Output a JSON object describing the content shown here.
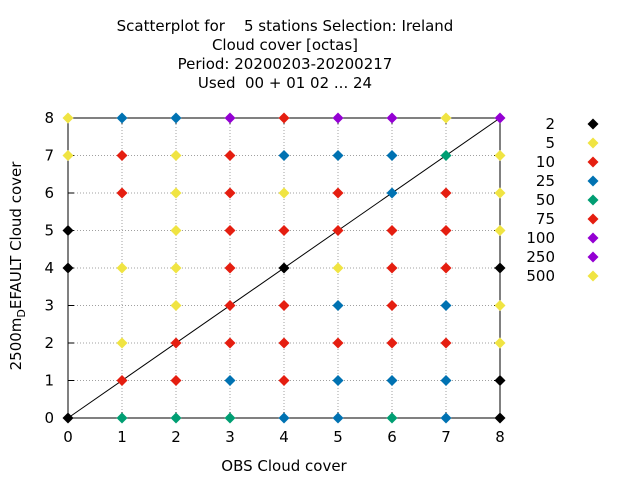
{
  "chart_data": {
    "type": "scatter",
    "title_lines": [
      "Scatterplot for    5 stations Selection: Ireland",
      "Cloud cover [octas]",
      "Period: 20200203-20200217",
      "Used  00 + 01 02 ... 24"
    ],
    "xlabel": "OBS Cloud cover",
    "ylabel": {
      "prefix": "2500m",
      "sub": "D",
      "suffix": "EFAULT Cloud cover"
    },
    "xlim": [
      0,
      8
    ],
    "ylim": [
      0,
      8
    ],
    "xticks": [
      "0",
      "1",
      "2",
      "3",
      "4",
      "5",
      "6",
      "7",
      "8"
    ],
    "yticks": [
      "0",
      "1",
      "2",
      "3",
      "4",
      "5",
      "6",
      "7",
      "8"
    ],
    "grid": true,
    "diagonal": true,
    "legend_position": "right",
    "legend": [
      {
        "label": "2",
        "color": "#000000"
      },
      {
        "label": "5",
        "color": "#f0e442"
      },
      {
        "label": "10",
        "color": "#e51e10"
      },
      {
        "label": "25",
        "color": "#0072b2"
      },
      {
        "label": "50",
        "color": "#009e73"
      },
      {
        "label": "75",
        "color": "#e51e10"
      },
      {
        "label": "100",
        "color": "#9400d3"
      },
      {
        "label": "250",
        "color": "#9400d3"
      },
      {
        "label": "500",
        "color": "#f0e442"
      }
    ],
    "points": [
      {
        "x": 0,
        "y": 0,
        "color": "#000000"
      },
      {
        "x": 1,
        "y": 0,
        "color": "#009e73"
      },
      {
        "x": 2,
        "y": 0,
        "color": "#009e73"
      },
      {
        "x": 3,
        "y": 0,
        "color": "#009e73"
      },
      {
        "x": 4,
        "y": 0,
        "color": "#0072b2"
      },
      {
        "x": 5,
        "y": 0,
        "color": "#0072b2"
      },
      {
        "x": 6,
        "y": 0,
        "color": "#009e73"
      },
      {
        "x": 7,
        "y": 0,
        "color": "#0072b2"
      },
      {
        "x": 8,
        "y": 0,
        "color": "#000000"
      },
      {
        "x": 1,
        "y": 1,
        "color": "#e51e10"
      },
      {
        "x": 2,
        "y": 1,
        "color": "#e51e10"
      },
      {
        "x": 3,
        "y": 1,
        "color": "#0072b2"
      },
      {
        "x": 4,
        "y": 1,
        "color": "#e51e10"
      },
      {
        "x": 5,
        "y": 1,
        "color": "#0072b2"
      },
      {
        "x": 6,
        "y": 1,
        "color": "#0072b2"
      },
      {
        "x": 7,
        "y": 1,
        "color": "#0072b2"
      },
      {
        "x": 8,
        "y": 1,
        "color": "#000000"
      },
      {
        "x": 1,
        "y": 2,
        "color": "#f0e442"
      },
      {
        "x": 2,
        "y": 2,
        "color": "#e51e10"
      },
      {
        "x": 3,
        "y": 2,
        "color": "#e51e10"
      },
      {
        "x": 4,
        "y": 2,
        "color": "#e51e10"
      },
      {
        "x": 5,
        "y": 2,
        "color": "#e51e10"
      },
      {
        "x": 6,
        "y": 2,
        "color": "#e51e10"
      },
      {
        "x": 7,
        "y": 2,
        "color": "#e51e10"
      },
      {
        "x": 8,
        "y": 2,
        "color": "#f0e442"
      },
      {
        "x": 2,
        "y": 3,
        "color": "#f0e442"
      },
      {
        "x": 3,
        "y": 3,
        "color": "#e51e10"
      },
      {
        "x": 4,
        "y": 3,
        "color": "#e51e10"
      },
      {
        "x": 5,
        "y": 3,
        "color": "#0072b2"
      },
      {
        "x": 6,
        "y": 3,
        "color": "#e51e10"
      },
      {
        "x": 7,
        "y": 3,
        "color": "#0072b2"
      },
      {
        "x": 8,
        "y": 3,
        "color": "#f0e442"
      },
      {
        "x": 0,
        "y": 4,
        "color": "#000000"
      },
      {
        "x": 1,
        "y": 4,
        "color": "#f0e442"
      },
      {
        "x": 2,
        "y": 4,
        "color": "#f0e442"
      },
      {
        "x": 3,
        "y": 4,
        "color": "#e51e10"
      },
      {
        "x": 4,
        "y": 4,
        "color": "#000000"
      },
      {
        "x": 5,
        "y": 4,
        "color": "#f0e442"
      },
      {
        "x": 6,
        "y": 4,
        "color": "#e51e10"
      },
      {
        "x": 7,
        "y": 4,
        "color": "#e51e10"
      },
      {
        "x": 8,
        "y": 4,
        "color": "#000000"
      },
      {
        "x": 0,
        "y": 5,
        "color": "#000000"
      },
      {
        "x": 2,
        "y": 5,
        "color": "#f0e442"
      },
      {
        "x": 3,
        "y": 5,
        "color": "#e51e10"
      },
      {
        "x": 4,
        "y": 5,
        "color": "#e51e10"
      },
      {
        "x": 5,
        "y": 5,
        "color": "#e51e10"
      },
      {
        "x": 6,
        "y": 5,
        "color": "#e51e10"
      },
      {
        "x": 7,
        "y": 5,
        "color": "#e51e10"
      },
      {
        "x": 8,
        "y": 5,
        "color": "#f0e442"
      },
      {
        "x": 1,
        "y": 6,
        "color": "#e51e10"
      },
      {
        "x": 2,
        "y": 6,
        "color": "#f0e442"
      },
      {
        "x": 3,
        "y": 6,
        "color": "#e51e10"
      },
      {
        "x": 4,
        "y": 6,
        "color": "#f0e442"
      },
      {
        "x": 5,
        "y": 6,
        "color": "#e51e10"
      },
      {
        "x": 6,
        "y": 6,
        "color": "#0072b2"
      },
      {
        "x": 7,
        "y": 6,
        "color": "#e51e10"
      },
      {
        "x": 8,
        "y": 6,
        "color": "#f0e442"
      },
      {
        "x": 0,
        "y": 7,
        "color": "#f0e442"
      },
      {
        "x": 1,
        "y": 7,
        "color": "#e51e10"
      },
      {
        "x": 2,
        "y": 7,
        "color": "#f0e442"
      },
      {
        "x": 3,
        "y": 7,
        "color": "#e51e10"
      },
      {
        "x": 4,
        "y": 7,
        "color": "#0072b2"
      },
      {
        "x": 5,
        "y": 7,
        "color": "#0072b2"
      },
      {
        "x": 6,
        "y": 7,
        "color": "#0072b2"
      },
      {
        "x": 7,
        "y": 7,
        "color": "#009e73"
      },
      {
        "x": 8,
        "y": 7,
        "color": "#f0e442"
      },
      {
        "x": 0,
        "y": 8,
        "color": "#f0e442"
      },
      {
        "x": 1,
        "y": 8,
        "color": "#0072b2"
      },
      {
        "x": 2,
        "y": 8,
        "color": "#0072b2"
      },
      {
        "x": 3,
        "y": 8,
        "color": "#9400d3"
      },
      {
        "x": 4,
        "y": 8,
        "color": "#e51e10"
      },
      {
        "x": 5,
        "y": 8,
        "color": "#9400d3"
      },
      {
        "x": 6,
        "y": 8,
        "color": "#9400d3"
      },
      {
        "x": 7,
        "y": 8,
        "color": "#f0e442"
      },
      {
        "x": 8,
        "y": 8,
        "color": "#9400d3"
      }
    ]
  }
}
